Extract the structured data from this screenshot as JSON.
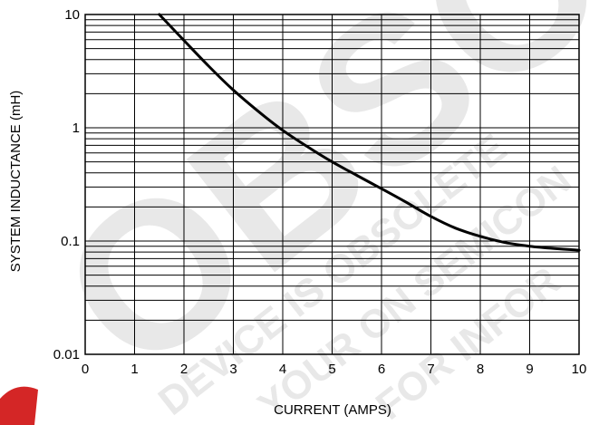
{
  "chart_data": {
    "type": "line",
    "xlabel": "CURRENT (AMPS)",
    "ylabel": "SYSTEM INDUCTANCE (mH)",
    "xlim": [
      0,
      10
    ],
    "ylim": [
      0.01,
      10
    ],
    "yscale": "log",
    "grid": true,
    "x_ticks": [
      "0",
      "1",
      "2",
      "3",
      "4",
      "5",
      "6",
      "7",
      "8",
      "9",
      "10"
    ],
    "y_ticks": [
      "0.01",
      "0.1",
      "1",
      "10"
    ],
    "series": [
      {
        "color": "#000000",
        "x": [
          1.5,
          2,
          2.5,
          3,
          3.5,
          4,
          4.5,
          5,
          5.5,
          6,
          6.5,
          7,
          7.5,
          8,
          8.5,
          9,
          9.5,
          10
        ],
        "y": [
          10,
          5.9,
          3.5,
          2.15,
          1.4,
          0.95,
          0.68,
          0.5,
          0.38,
          0.29,
          0.22,
          0.165,
          0.13,
          0.11,
          0.097,
          0.09,
          0.086,
          0.083
        ]
      }
    ]
  },
  "watermark": {
    "large": "OBSOLETE",
    "lines": [
      "DEVICE IS OBSOLETE",
      "YOUR ON SEMICON",
      "FOR INFOR"
    ],
    "color": "#e8e8e8",
    "accent_color": "#cc0000"
  }
}
